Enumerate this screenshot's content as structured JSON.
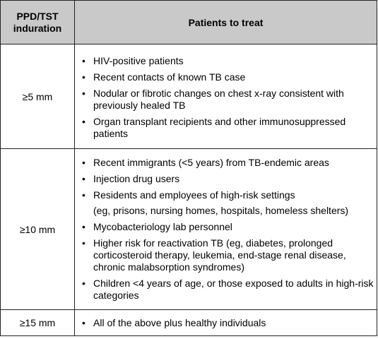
{
  "header": {
    "col1_line1": "PPD/TST",
    "col1_line2": "induration",
    "col2": "Patients to treat"
  },
  "rows": [
    {
      "induration": "≥5 mm",
      "items": [
        "HIV-positive patients",
        "Recent contacts of known TB case",
        "Nodular or fibrotic changes on chest x-ray consistent with previously healed TB",
        "Organ transplant recipients and other immunosuppressed patients"
      ]
    },
    {
      "induration": "≥10 mm",
      "items": [
        "Recent immigrants (<5 years) from TB-endemic areas",
        "Injection drug users",
        "Residents and employees of high-risk settings",
        "Mycobacteriology lab personnel",
        "Higher risk for reactivation TB (eg, diabetes, prolonged corticosteroid therapy, leukemia, end-stage renal disease, chronic malabsorption syndromes)",
        "Children <4 years of age, or those exposed to adults in high-risk categories"
      ],
      "note": "(eg, prisons, nursing homes, hospitals, homeless shelters)"
    },
    {
      "induration": "≥15 mm",
      "items": [
        "All of the above plus healthy individuals"
      ]
    }
  ],
  "icons": {
    "bullet": "bullet-icon"
  }
}
